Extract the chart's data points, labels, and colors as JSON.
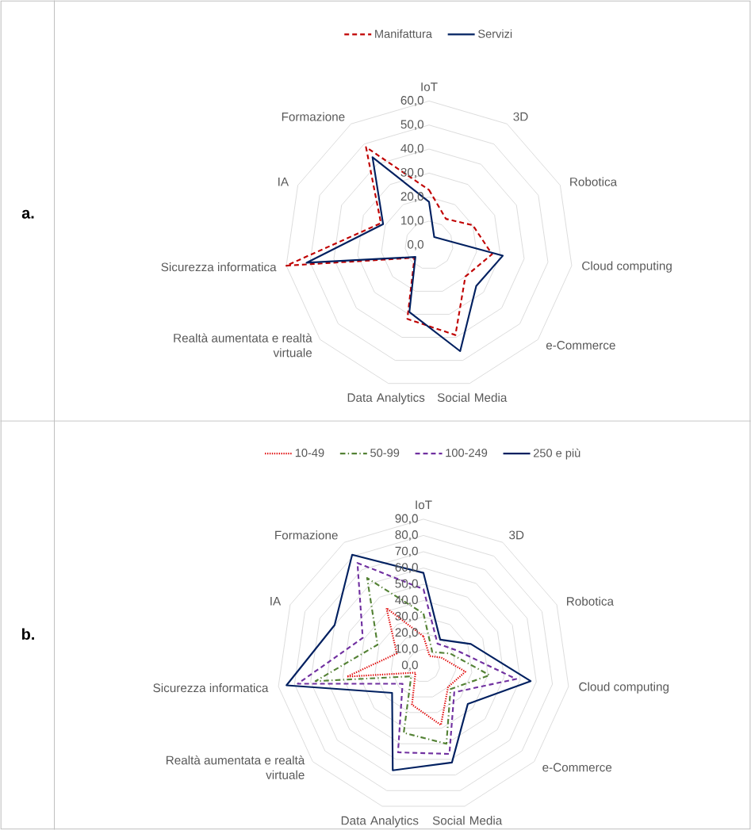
{
  "chart_data": [
    {
      "type": "radar",
      "annotations": [
        "a."
      ],
      "categories": [
        "IoT",
        "3D",
        "Robotica",
        "Cloud computing",
        "e-Commerce",
        "Social Media",
        "Data Analytics",
        "Realtà aumentata e realtà virtuale",
        "Sicurezza informatica",
        "IA",
        "Formazione"
      ],
      "series": [
        {
          "name": "Manifattura",
          "color": "#c00000",
          "line_style": "dashed",
          "values": [
            23,
            13,
            20,
            26.5,
            20,
            39,
            32,
            8,
            60,
            22,
            48.5
          ]
        },
        {
          "name": "Servizi",
          "color": "#002060",
          "line_style": "solid",
          "values": [
            18,
            4,
            6,
            31,
            26,
            46,
            29,
            7.5,
            51.5,
            21,
            43.5
          ]
        }
      ],
      "ylim": [
        0,
        60
      ],
      "yticks": [
        {
          "value": 0,
          "label": "0,0"
        },
        {
          "value": 10,
          "label": "10,0"
        },
        {
          "value": 20,
          "label": "20,0"
        },
        {
          "value": 30,
          "label": "30,0"
        },
        {
          "value": 40,
          "label": "40,0"
        },
        {
          "value": 50,
          "label": "50,0"
        },
        {
          "value": 60,
          "label": "60,0"
        }
      ],
      "grid": true,
      "legend": "top"
    },
    {
      "type": "radar",
      "annotations": [
        "b."
      ],
      "categories": [
        "IoT",
        "3D",
        "Robotica",
        "Cloud computing",
        "e-Commerce",
        "Social Media",
        "Data Analytics",
        "Realtà aumentata e realtà virtuale",
        "Sicurezza informatica",
        "IA",
        "Formazione"
      ],
      "series": [
        {
          "name": "10-49",
          "color": "#e00000",
          "line_style": "dotted",
          "values": [
            18,
            7,
            12,
            26,
            20,
            38,
            25,
            6.5,
            47.5,
            18,
            42
          ]
        },
        {
          "name": "50-99",
          "color": "#548235",
          "line_style": "dashdot",
          "values": [
            32,
            10,
            18,
            41,
            22,
            50,
            43,
            10,
            67,
            31,
            64
          ]
        },
        {
          "name": "100-249",
          "color": "#7030a0",
          "line_style": "dashed",
          "values": [
            47,
            16,
            22.5,
            57.5,
            25,
            56.5,
            55.5,
            17,
            78,
            41,
            75
          ]
        },
        {
          "name": "250 e più",
          "color": "#002060",
          "line_style": "solid",
          "values": [
            57,
            19,
            32,
            66.5,
            36,
            62,
            67,
            25.5,
            85,
            60,
            81
          ]
        }
      ],
      "ylim": [
        0,
        90
      ],
      "yticks": [
        {
          "value": 0,
          "label": "0,0"
        },
        {
          "value": 10,
          "label": "10,0"
        },
        {
          "value": 20,
          "label": "20,0"
        },
        {
          "value": 30,
          "label": "30,0"
        },
        {
          "value": 40,
          "label": "40,0"
        },
        {
          "value": 50,
          "label": "50,0"
        },
        {
          "value": 60,
          "label": "60,0"
        },
        {
          "value": 70,
          "label": "70,0"
        },
        {
          "value": 80,
          "label": "80,0"
        },
        {
          "value": 90,
          "label": "90,0"
        }
      ],
      "grid": true,
      "legend": "top"
    }
  ]
}
